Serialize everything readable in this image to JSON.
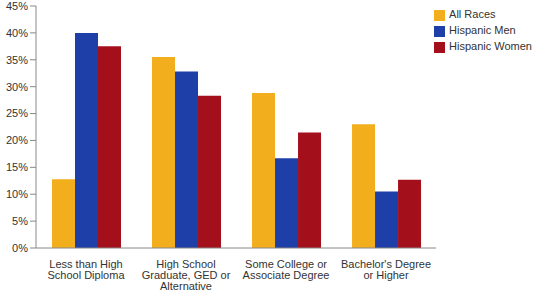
{
  "chart_data": {
    "type": "bar",
    "categories": [
      "Less than High School Diploma",
      "High School Graduate, GED or Alternative",
      "Some College or Associate Degree",
      "Bachelor's Degree or Higher"
    ],
    "series": [
      {
        "name": "All Races",
        "color": "#F2AE1C",
        "values": [
          12.8,
          35.5,
          28.8,
          23.0
        ]
      },
      {
        "name": "Hispanic Men",
        "color": "#1F3FA8",
        "values": [
          40.0,
          32.8,
          16.7,
          10.5
        ]
      },
      {
        "name": "Hispanic Women",
        "color": "#A3101C",
        "values": [
          37.5,
          28.3,
          21.5,
          12.7
        ]
      }
    ],
    "ylim": [
      0,
      45
    ],
    "yticks": [
      {
        "value": 0,
        "label": "0%"
      },
      {
        "value": 5,
        "label": "5%"
      },
      {
        "value": 10,
        "label": "10%"
      },
      {
        "value": 15,
        "label": "15%"
      },
      {
        "value": 20,
        "label": "20%"
      },
      {
        "value": 25,
        "label": "25%"
      },
      {
        "value": 30,
        "label": "30%"
      },
      {
        "value": 35,
        "label": "35%"
      },
      {
        "value": 40,
        "label": "40%"
      },
      {
        "value": 45,
        "label": "45%"
      }
    ],
    "grid": false,
    "legend": "top-right"
  }
}
